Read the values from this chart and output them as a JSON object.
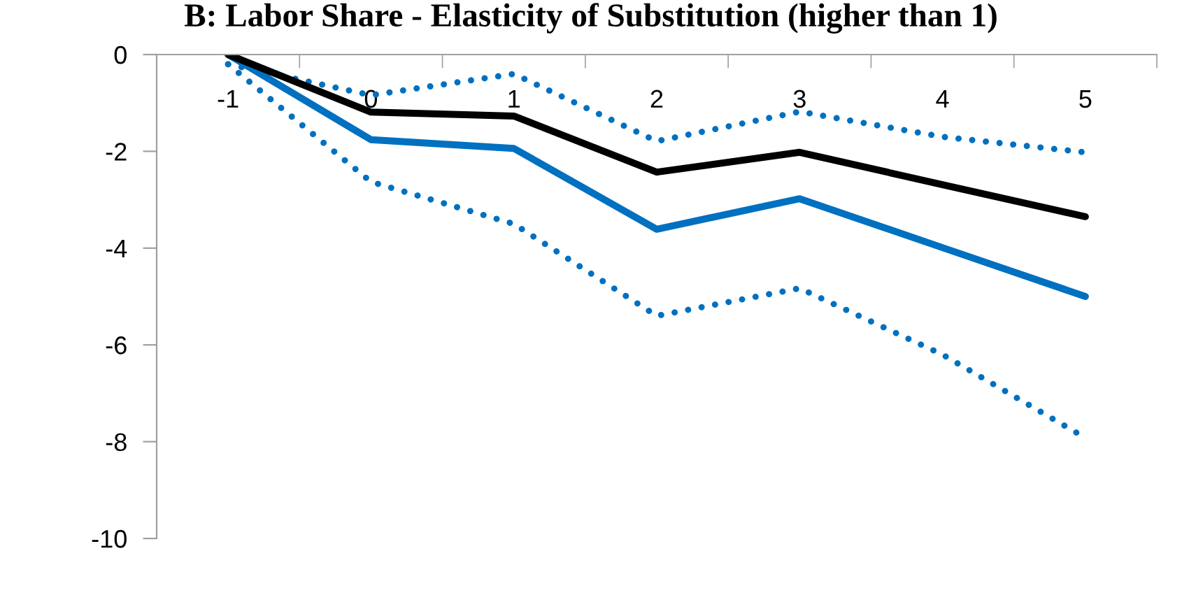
{
  "chart_data": {
    "type": "line",
    "title": "B: Labor Share - Elasticity of Substitution (higher than 1)",
    "categories": [
      "-1",
      "0",
      "1",
      "2",
      "3",
      "4",
      "5"
    ],
    "series": [
      {
        "color": "#0070c0",
        "line_style": "dotted",
        "values": [
          -0.2,
          -0.84,
          -0.4,
          -1.79,
          -1.18,
          -1.7,
          -2.02
        ]
      },
      {
        "color": "#0070c0",
        "line_style": "dotted",
        "values": [
          -0.2,
          -2.63,
          -3.5,
          -5.4,
          -4.83,
          -6.2,
          -7.92
        ]
      },
      {
        "color": "#0070c0",
        "line_style": "solid",
        "values": [
          0,
          -1.76,
          -1.94,
          -3.61,
          -2.98,
          -3.99,
          -5.0
        ]
      },
      {
        "color": "#000000",
        "line_style": "solid",
        "values": [
          0,
          -1.19,
          -1.27,
          -2.43,
          -2.02,
          -2.69,
          -3.35
        ]
      }
    ],
    "ylim": [
      -10,
      0
    ],
    "yticks": [
      0,
      -2,
      -4,
      -6,
      -8,
      -10
    ],
    "marker": "none"
  }
}
